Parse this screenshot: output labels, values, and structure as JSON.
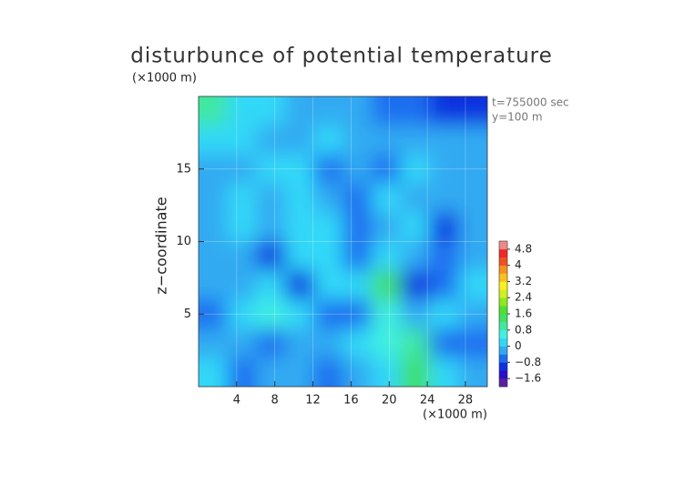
{
  "chart_data": {
    "type": "contour",
    "title": "disturbunce of potential temperature",
    "y_unit": "(×1000 m)",
    "x_unit": "(×1000 m)",
    "ylabel": "z−coordinate",
    "annotations": [
      "t=755000 sec",
      "y=100 m"
    ],
    "xlim": [
      0,
      30.3
    ],
    "ylim": [
      0,
      20
    ],
    "xticks": [
      4,
      8,
      12,
      16,
      20,
      24,
      28
    ],
    "yticks": [
      5,
      10,
      15
    ],
    "grid": true,
    "values": [
      [
        1.0,
        0.3,
        0.2,
        -0.2,
        -0.2,
        -0.3,
        -0.5,
        -0.8,
        -1.2,
        -1.0
      ],
      [
        0.2,
        0.1,
        -0.2,
        -0.3,
        0.1,
        -0.2,
        -0.3,
        -0.4,
        -0.3,
        -0.2
      ],
      [
        -0.2,
        -0.3,
        0.1,
        0.2,
        -0.5,
        -0.2,
        -0.6,
        0.2,
        -0.1,
        -0.2
      ],
      [
        -0.2,
        0.0,
        -0.1,
        0.2,
        -0.2,
        -0.5,
        0.1,
        -0.2,
        -0.3,
        -0.2
      ],
      [
        -0.1,
        0.1,
        -0.3,
        0.0,
        0.2,
        -0.7,
        -0.2,
        0.1,
        -0.9,
        -0.3
      ],
      [
        -0.2,
        -0.1,
        -0.9,
        0.2,
        0.1,
        -0.5,
        0.2,
        -0.3,
        -0.8,
        -0.2
      ],
      [
        -0.3,
        -0.1,
        0.1,
        -0.9,
        0.3,
        0.2,
        1.2,
        -1.2,
        -0.5,
        0.0
      ],
      [
        -0.6,
        0.2,
        0.7,
        0.1,
        -0.7,
        -0.5,
        0.4,
        -0.4,
        0.1,
        -0.3
      ],
      [
        -0.3,
        -0.2,
        -0.6,
        -0.3,
        -0.2,
        0.2,
        0.6,
        1.0,
        -0.6,
        -0.5
      ],
      [
        0.2,
        -0.5,
        -0.3,
        -0.4,
        -0.5,
        -0.3,
        0.3,
        1.2,
        0.1,
        -0.4
      ]
    ],
    "colorbar": {
      "levels": [
        -2.0,
        -1.6,
        -1.2,
        -0.8,
        -0.4,
        0,
        0.4,
        0.8,
        1.2,
        1.6,
        2.0,
        2.4,
        2.8,
        3.2,
        3.6,
        4.0,
        4.4,
        4.8,
        5.2
      ],
      "colors": [
        "#5a1ea0",
        "#2a10c8",
        "#1030e0",
        "#1a6ef0",
        "#30aaf2",
        "#30d8f8",
        "#40f0e0",
        "#40e8a0",
        "#40e060",
        "#50e030",
        "#90e820",
        "#d0f020",
        "#f8f020",
        "#f8c020",
        "#f89020",
        "#f05020",
        "#f02828",
        "#f08888"
      ],
      "ticks": [
        {
          "value": -1.6,
          "label": "−1.6"
        },
        {
          "value": -0.8,
          "label": "−0.8"
        },
        0,
        0.8,
        1.6,
        2.4,
        3.2,
        4,
        4.8
      ]
    }
  }
}
